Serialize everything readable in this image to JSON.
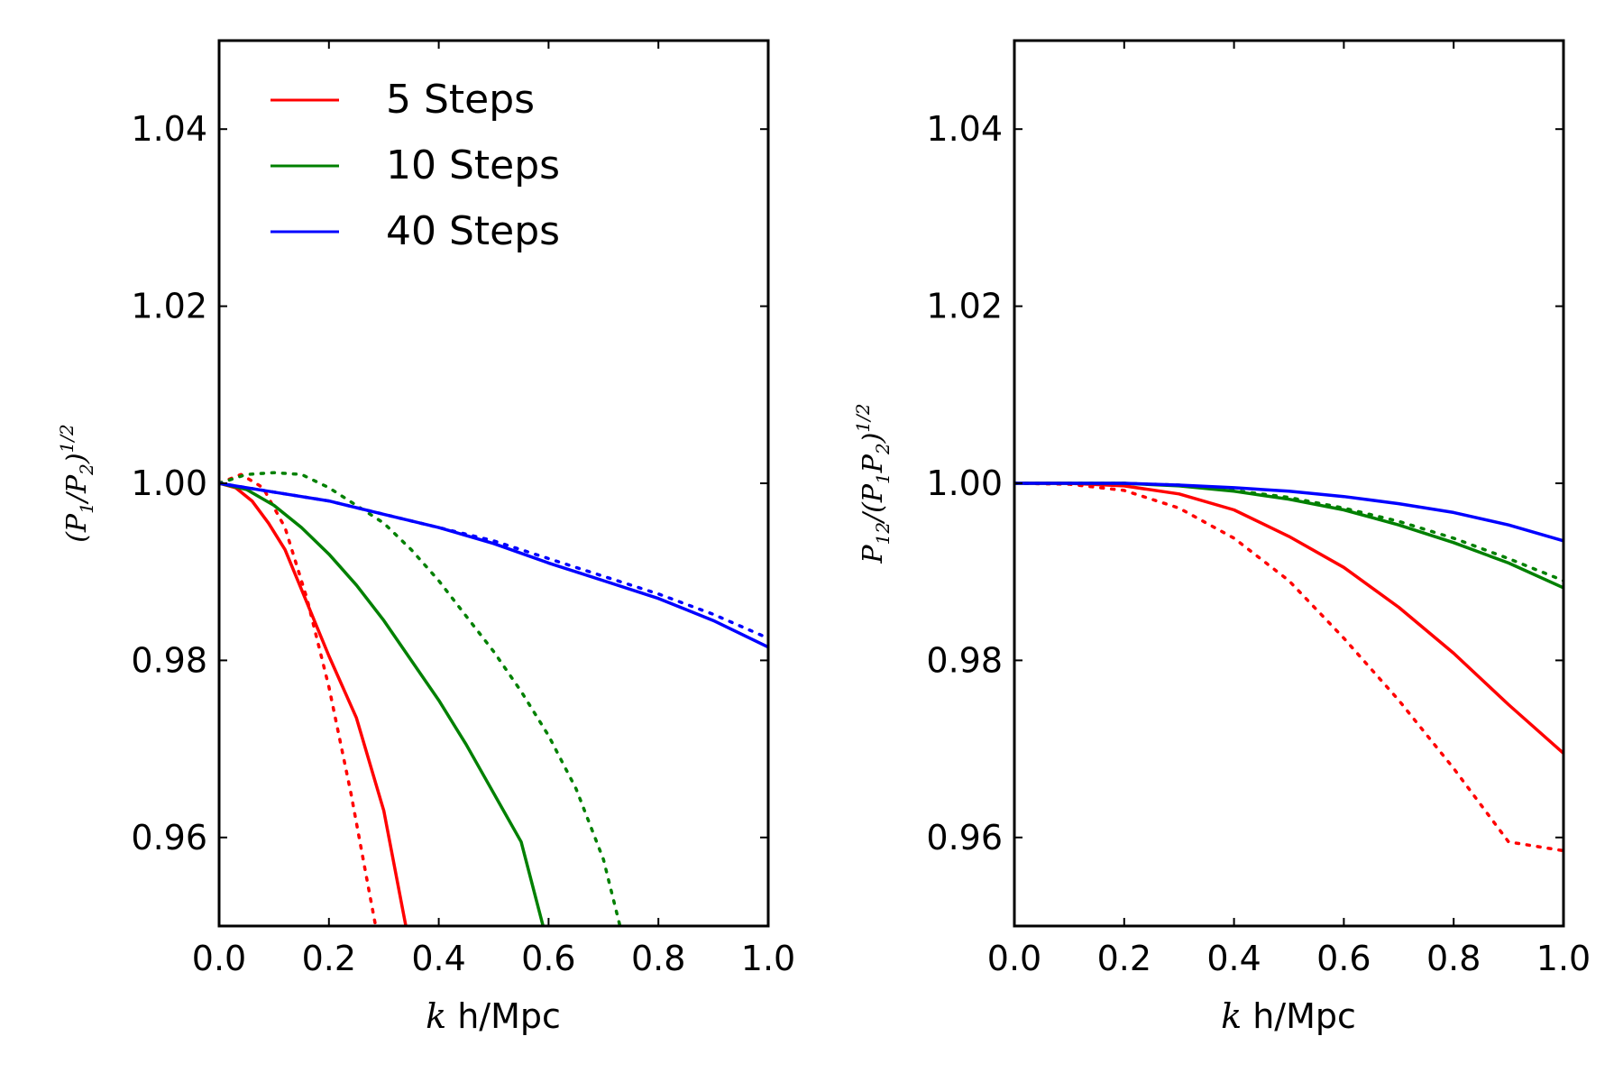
{
  "chart_data": [
    {
      "type": "line",
      "panel": "left",
      "xlabel": {
        "math": "k",
        "text": "h/Mpc"
      },
      "ylabel": {
        "base": "(P",
        "sub1": "1",
        "mid": "/P",
        "sub2": "2",
        "close": ")",
        "sup": "1/2"
      },
      "xlim": [
        0.0,
        1.0
      ],
      "ylim": [
        0.95,
        1.05
      ],
      "xticks": [
        "0.0",
        "0.2",
        "0.4",
        "0.6",
        "0.8",
        "1.0"
      ],
      "yticks": [
        "0.96",
        "0.98",
        "1.00",
        "1.02",
        "1.04"
      ],
      "legend": {
        "placement": "top-left",
        "entries": [
          "5 Steps",
          "10 Steps",
          "40 Steps"
        ]
      },
      "series": [
        {
          "name": "5 Steps",
          "style": "solid",
          "color": "#ff0000",
          "x": [
            0,
            0.03,
            0.06,
            0.09,
            0.12,
            0.15,
            0.2,
            0.25,
            0.3,
            0.34
          ],
          "y": [
            1.0,
            0.9995,
            0.998,
            0.9955,
            0.9925,
            0.988,
            0.9805,
            0.9735,
            0.963,
            0.95
          ]
        },
        {
          "name": "5 Steps",
          "style": "dotted",
          "color": "#ff0000",
          "x": [
            0,
            0.04,
            0.08,
            0.12,
            0.16,
            0.2,
            0.24,
            0.27,
            0.285
          ],
          "y": [
            1.0,
            1.001,
            0.9995,
            0.995,
            0.987,
            0.977,
            0.965,
            0.955,
            0.95
          ]
        },
        {
          "name": "10 Steps",
          "style": "solid",
          "color": "#008000",
          "x": [
            0,
            0.05,
            0.1,
            0.15,
            0.2,
            0.25,
            0.3,
            0.35,
            0.4,
            0.45,
            0.5,
            0.55,
            0.59
          ],
          "y": [
            1.0,
            0.9993,
            0.9975,
            0.995,
            0.992,
            0.9885,
            0.9845,
            0.98,
            0.9755,
            0.9705,
            0.965,
            0.9595,
            0.95
          ]
        },
        {
          "name": "10 Steps",
          "style": "dotted",
          "color": "#008000",
          "x": [
            0,
            0.05,
            0.1,
            0.15,
            0.2,
            0.25,
            0.3,
            0.35,
            0.4,
            0.45,
            0.5,
            0.55,
            0.6,
            0.65,
            0.7,
            0.73
          ],
          "y": [
            1.0,
            1.001,
            1.0012,
            1.001,
            0.9995,
            0.9975,
            0.9955,
            0.9925,
            0.989,
            0.985,
            0.981,
            0.9765,
            0.9715,
            0.9655,
            0.9575,
            0.95
          ]
        },
        {
          "name": "40 Steps",
          "style": "solid",
          "color": "#0000ff",
          "x": [
            0,
            0.1,
            0.2,
            0.3,
            0.4,
            0.5,
            0.6,
            0.7,
            0.8,
            0.9,
            1.0
          ],
          "y": [
            1.0,
            0.999,
            0.998,
            0.9965,
            0.995,
            0.9932,
            0.991,
            0.989,
            0.987,
            0.9845,
            0.9815
          ]
        },
        {
          "name": "40 Steps",
          "style": "dotted",
          "color": "#0000ff",
          "x": [
            0,
            0.1,
            0.2,
            0.3,
            0.4,
            0.5,
            0.6,
            0.7,
            0.8,
            0.9,
            1.0
          ],
          "y": [
            1.0,
            0.999,
            0.998,
            0.9965,
            0.995,
            0.9935,
            0.9915,
            0.9895,
            0.9875,
            0.9852,
            0.9825
          ]
        }
      ]
    },
    {
      "type": "line",
      "panel": "right",
      "xlabel": {
        "math": "k",
        "text": "h/Mpc"
      },
      "ylabel": {
        "base": "P",
        "sub0": "12",
        "mid0": "/(P",
        "sub1": "1",
        "mid": "P",
        "sub2": "2",
        "close": ")",
        "sup": "1/2"
      },
      "xlim": [
        0.0,
        1.0
      ],
      "ylim": [
        0.95,
        1.05
      ],
      "xticks": [
        "0.0",
        "0.2",
        "0.4",
        "0.6",
        "0.8",
        "1.0"
      ],
      "yticks": [
        "0.96",
        "0.98",
        "1.00",
        "1.02",
        "1.04"
      ],
      "series": [
        {
          "name": "5 Steps",
          "style": "solid",
          "color": "#ff0000",
          "x": [
            0,
            0.1,
            0.2,
            0.3,
            0.4,
            0.5,
            0.6,
            0.7,
            0.8,
            0.9,
            1.0
          ],
          "y": [
            1.0,
            1.0,
            0.9997,
            0.9988,
            0.997,
            0.994,
            0.9905,
            0.986,
            0.9808,
            0.975,
            0.9695
          ]
        },
        {
          "name": "5 Steps",
          "style": "dotted",
          "color": "#ff0000",
          "x": [
            0,
            0.1,
            0.2,
            0.3,
            0.4,
            0.5,
            0.6,
            0.7,
            0.8,
            0.9,
            1.0
          ],
          "y": [
            1.0,
            0.9999,
            0.9992,
            0.9972,
            0.9938,
            0.989,
            0.9825,
            0.9755,
            0.9678,
            0.9595,
            0.9585
          ]
        },
        {
          "name": "10 Steps",
          "style": "solid",
          "color": "#008000",
          "x": [
            0,
            0.1,
            0.2,
            0.3,
            0.4,
            0.5,
            0.6,
            0.7,
            0.8,
            0.9,
            1.0
          ],
          "y": [
            1.0,
            1.0,
            1.0,
            0.9997,
            0.9991,
            0.9982,
            0.997,
            0.9953,
            0.9933,
            0.991,
            0.9882
          ]
        },
        {
          "name": "10 Steps",
          "style": "dotted",
          "color": "#008000",
          "x": [
            0,
            0.1,
            0.2,
            0.3,
            0.4,
            0.5,
            0.6,
            0.7,
            0.8,
            0.9,
            1.0
          ],
          "y": [
            1.0,
            1.0,
            1.0,
            0.9998,
            0.9992,
            0.9984,
            0.9972,
            0.9957,
            0.9938,
            0.9915,
            0.989
          ]
        },
        {
          "name": "40 Steps",
          "style": "solid",
          "color": "#0000ff",
          "x": [
            0,
            0.1,
            0.2,
            0.3,
            0.4,
            0.5,
            0.6,
            0.7,
            0.8,
            0.9,
            1.0
          ],
          "y": [
            1.0,
            1.0,
            1.0,
            0.9998,
            0.9995,
            0.9991,
            0.9985,
            0.9977,
            0.9967,
            0.9953,
            0.9935
          ]
        }
      ]
    }
  ]
}
